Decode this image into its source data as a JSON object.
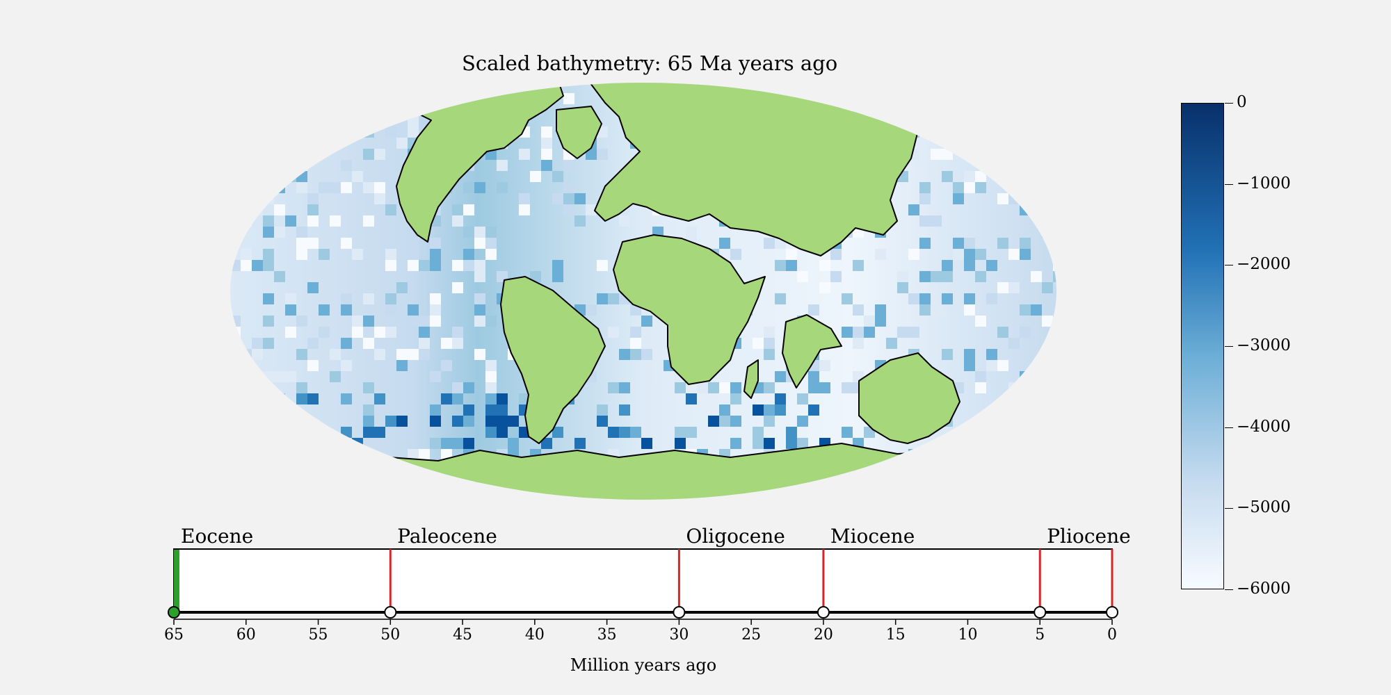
{
  "map": {
    "title": "Scaled bathymetry: 65 Ma years ago",
    "land_color": "#a6d77a",
    "ocean_colormap": "blues",
    "coastline_color": "#000000"
  },
  "colorbar": {
    "min": -6000,
    "max": 0,
    "ticks": [
      {
        "value": 0,
        "label": "0"
      },
      {
        "value": -1000,
        "label": "−1000"
      },
      {
        "value": -2000,
        "label": "−2000"
      },
      {
        "value": -3000,
        "label": "−3000"
      },
      {
        "value": -4000,
        "label": "−4000"
      },
      {
        "value": -5000,
        "label": "−5000"
      },
      {
        "value": -6000,
        "label": "−6000"
      }
    ],
    "color_top": "#08306b",
    "color_bottom": "#f7fbff"
  },
  "timeline": {
    "xlabel": "Million years ago",
    "range": [
      65,
      0
    ],
    "current": 65,
    "current_color": "#2ca02c",
    "boundary_color": "#d62728",
    "boundaries": [
      {
        "value": 65,
        "label": "Eocene"
      },
      {
        "value": 50,
        "label": "Paleocene"
      },
      {
        "value": 30,
        "label": "Oligocene"
      },
      {
        "value": 20,
        "label": "Miocene"
      },
      {
        "value": 5,
        "label": "Pliocene"
      }
    ],
    "markers": [
      65,
      50,
      30,
      20,
      5,
      0
    ],
    "ticks": [
      "65",
      "60",
      "55",
      "50",
      "45",
      "40",
      "35",
      "30",
      "25",
      "20",
      "15",
      "10",
      "5",
      "0"
    ]
  }
}
